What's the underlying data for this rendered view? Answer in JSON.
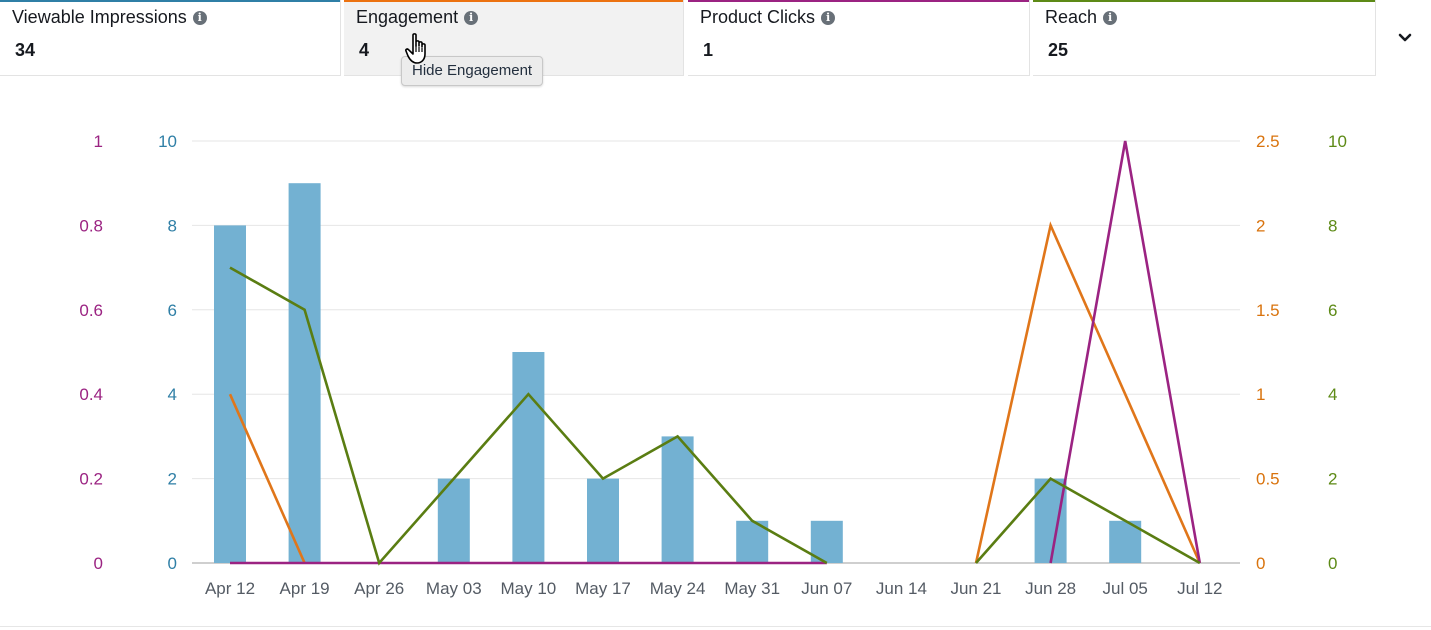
{
  "metrics": [
    {
      "label": "Viewable Impressions",
      "value": "34",
      "color": "#2f7fa6",
      "info_icon": "info-icon"
    },
    {
      "label": "Engagement",
      "value": "4",
      "color": "#ec7211",
      "info_icon": "info-icon"
    },
    {
      "label": "Product Clicks",
      "value": "1",
      "color": "#9b2382",
      "info_icon": "info-icon"
    },
    {
      "label": "Reach",
      "value": "25",
      "color": "#5d8a16",
      "info_icon": "info-icon"
    }
  ],
  "tooltip": "Hide Engagement",
  "expand_icon": "chevron-down-icon",
  "chart_data": {
    "type": "bar",
    "categories": [
      "Apr 12",
      "Apr 19",
      "Apr 26",
      "May 03",
      "May 10",
      "May 17",
      "May 24",
      "May 31",
      "Jun 07",
      "Jun 14",
      "Jun 21",
      "Jun 28",
      "Jul 05",
      "Jul 12"
    ],
    "grid": true,
    "axes": [
      {
        "id": "clicks",
        "side": "left-outer",
        "color": "#9b2382",
        "range": [
          0,
          1
        ],
        "ticks": [
          "0",
          "0.2",
          "0.4",
          "0.6",
          "0.8",
          "1"
        ]
      },
      {
        "id": "impressions",
        "side": "left-inner",
        "color": "#2f7fa6",
        "range": [
          0,
          10
        ],
        "ticks": [
          "0",
          "2",
          "4",
          "6",
          "8",
          "10"
        ]
      },
      {
        "id": "engagement",
        "side": "right-inner",
        "color": "#d9730d",
        "range": [
          0,
          2.5
        ],
        "ticks": [
          "0",
          "0.5",
          "1",
          "1.5",
          "2",
          "2.5"
        ]
      },
      {
        "id": "reach",
        "side": "right-outer",
        "color": "#5d8a16",
        "range": [
          0,
          10
        ],
        "ticks": [
          "0",
          "2",
          "4",
          "6",
          "8",
          "10"
        ]
      }
    ],
    "series": [
      {
        "name": "Viewable Impressions",
        "type": "bar",
        "axis": "impressions",
        "color": "#73b1d2",
        "values": [
          8,
          9,
          0,
          2,
          5,
          2,
          3,
          1,
          1,
          0,
          0,
          2,
          1,
          0
        ]
      },
      {
        "name": "Engagement",
        "type": "line",
        "axis": "engagement",
        "color": "#e0761a",
        "values": [
          1,
          0,
          null,
          null,
          null,
          null,
          null,
          null,
          null,
          null,
          0,
          2,
          1,
          0
        ]
      },
      {
        "name": "Product Clicks",
        "type": "line",
        "axis": "clicks",
        "color": "#9b2382",
        "values": [
          0,
          0,
          0,
          0,
          0,
          0,
          0,
          0,
          0,
          null,
          null,
          0,
          1,
          0
        ]
      },
      {
        "name": "Reach",
        "type": "line",
        "axis": "reach",
        "color": "#5a7d12",
        "values": [
          7,
          6,
          0,
          2,
          4,
          2,
          3,
          1,
          0,
          null,
          0,
          2,
          1,
          0
        ]
      }
    ]
  }
}
